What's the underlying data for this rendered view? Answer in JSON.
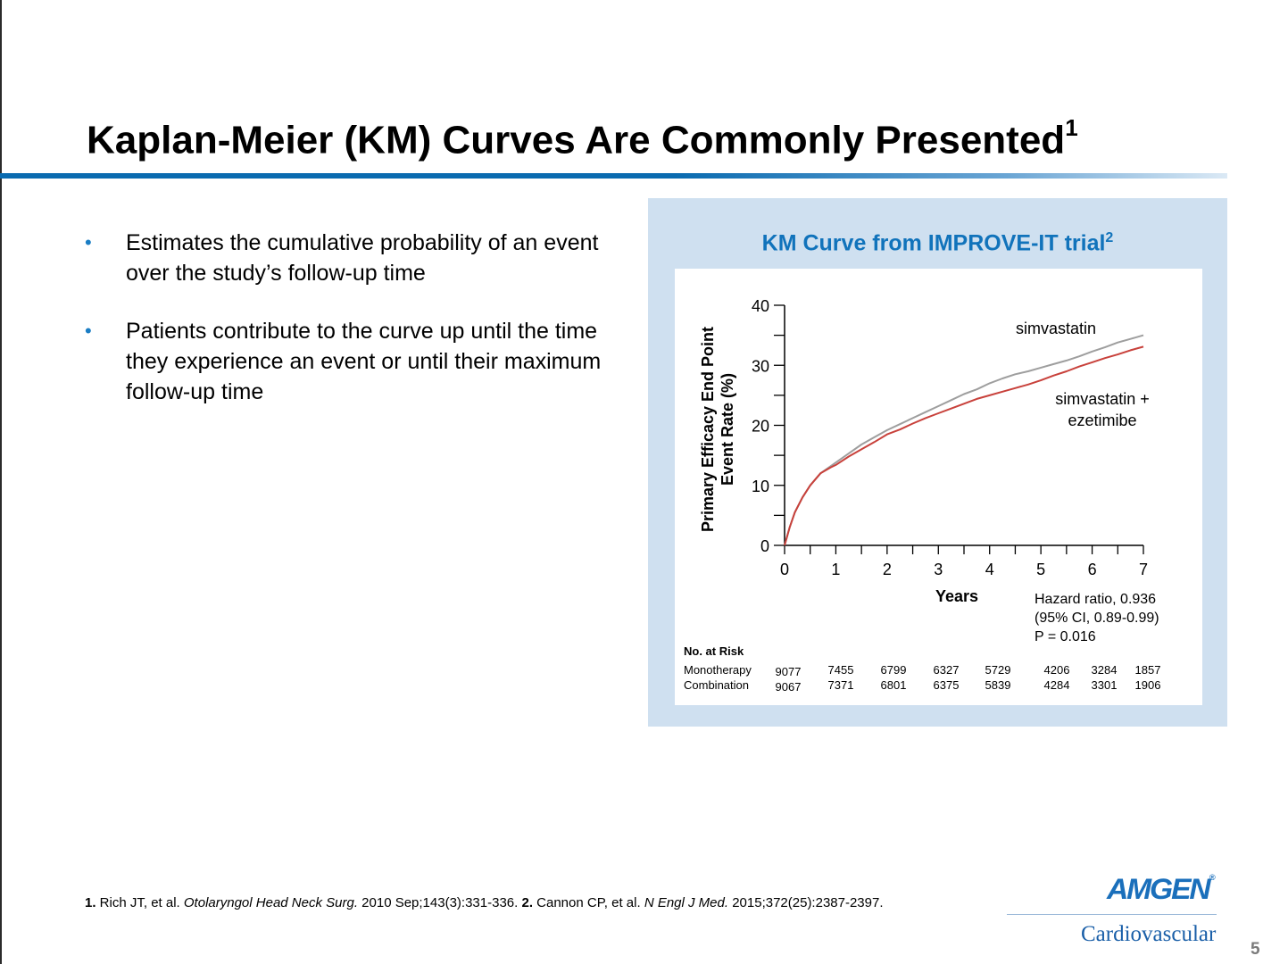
{
  "slide": {
    "title": "Kaplan-Meier (KM) Curves Are Commonly Presented",
    "title_ref": "1",
    "bullets": [
      "Estimates the cumulative probability of an event over the study’s follow-up time",
      "Patients contribute to the curve up until the time they experience an event or until their maximum follow-up time"
    ],
    "bullet_marker": "•",
    "page_number": "5"
  },
  "panel": {
    "title": "KM Curve from IMPROVE-IT trial",
    "title_ref": "2"
  },
  "footnote": {
    "ref1_num": "1.",
    "ref1_a": " Rich JT, et al. ",
    "ref1_journal": "Otolaryngol Head Neck Surg.",
    "ref1_b": " 2010 Sep;143(3):331-336. ",
    "ref2_num": "2.",
    "ref2_a": " Cannon CP, et al. ",
    "ref2_journal": "N Engl J Med.",
    "ref2_b": " 2015;372(25):2387-2397."
  },
  "brand": {
    "logo_text": "AMGEN",
    "logo_mark": "®",
    "subtitle": "Cardiovascular",
    "color": "#1a6fbb"
  },
  "chart_data": {
    "type": "line",
    "xlabel": "Years",
    "ylabel_lines": [
      "Primary Efficacy End Point",
      "Event Rate (%)"
    ],
    "xlim": [
      0,
      7
    ],
    "ylim": [
      0,
      40
    ],
    "x_ticks": [
      0,
      1,
      2,
      3,
      4,
      5,
      6,
      7
    ],
    "y_ticks": [
      0,
      10,
      20,
      30,
      40
    ],
    "series": [
      {
        "name": "simvastatin",
        "color": "#9e9e9e",
        "x": [
          0,
          0.1,
          0.2,
          0.35,
          0.5,
          0.7,
          0.9,
          1.0,
          1.25,
          1.5,
          1.75,
          2.0,
          2.25,
          2.5,
          2.75,
          3.0,
          3.25,
          3.5,
          3.75,
          4.0,
          4.25,
          4.5,
          4.75,
          5.0,
          5.25,
          5.5,
          5.75,
          6.0,
          6.25,
          6.5,
          6.75,
          7.0
        ],
        "y": [
          0,
          3,
          5.5,
          8,
          10,
          12,
          13.2,
          13.8,
          15.3,
          16.8,
          18.0,
          19.2,
          20.2,
          21.2,
          22.2,
          23.2,
          24.2,
          25.2,
          26.0,
          27.0,
          27.8,
          28.5,
          29.0,
          29.6,
          30.2,
          30.8,
          31.5,
          32.3,
          33.0,
          33.8,
          34.4,
          35.0
        ]
      },
      {
        "name": "simvastatin + ezetimibe",
        "color": "#c8413b",
        "x": [
          0,
          0.1,
          0.2,
          0.35,
          0.5,
          0.7,
          0.9,
          1.0,
          1.25,
          1.5,
          1.75,
          2.0,
          2.25,
          2.5,
          2.75,
          3.0,
          3.25,
          3.5,
          3.75,
          4.0,
          4.25,
          4.5,
          4.75,
          5.0,
          5.25,
          5.5,
          5.75,
          6.0,
          6.25,
          6.5,
          6.75,
          7.0
        ],
        "y": [
          0,
          3,
          5.5,
          8,
          10,
          12,
          13.0,
          13.4,
          14.8,
          16.0,
          17.2,
          18.5,
          19.3,
          20.3,
          21.2,
          22.0,
          22.8,
          23.6,
          24.4,
          25.0,
          25.6,
          26.2,
          26.8,
          27.5,
          28.3,
          29.0,
          29.8,
          30.5,
          31.2,
          31.8,
          32.5,
          33.1
        ]
      }
    ],
    "series_labels": [
      {
        "lines": [
          "simvastatin"
        ]
      },
      {
        "lines": [
          "simvastatin +",
          "ezetimibe"
        ]
      }
    ],
    "annotation": [
      "Hazard ratio, 0.936",
      "(95% CI, 0.89-0.99)",
      "P = 0.016"
    ],
    "risk_table": {
      "title": "No. at Risk",
      "rows": [
        {
          "label": "Monotherapy",
          "values": [
            "9077",
            "7455",
            "6799",
            "6327",
            "5729",
            "4206",
            "3284",
            "1857"
          ]
        },
        {
          "label": "Combination",
          "values": [
            "9067",
            "7371",
            "6801",
            "6375",
            "5839",
            "4284",
            "3301",
            "1906"
          ]
        }
      ]
    }
  }
}
